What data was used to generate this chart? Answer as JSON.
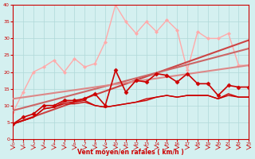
{
  "xlabel": "Vent moyen/en rafales ( km/h )",
  "xlim": [
    0,
    23
  ],
  "ylim": [
    0,
    40
  ],
  "xticks": [
    0,
    1,
    2,
    3,
    4,
    5,
    6,
    7,
    8,
    9,
    10,
    11,
    12,
    13,
    14,
    15,
    16,
    17,
    18,
    19,
    20,
    21,
    22,
    23
  ],
  "yticks": [
    0,
    5,
    10,
    15,
    20,
    25,
    30,
    35,
    40
  ],
  "bg_color": "#d4f0f0",
  "grid_color": "#b0d8d8",
  "series": [
    {
      "x": [
        0,
        1,
        2,
        3,
        4,
        5,
        6,
        7,
        8,
        9,
        10,
        11,
        12,
        13,
        14,
        15,
        16,
        17,
        18,
        19,
        20,
        21,
        22,
        23
      ],
      "y": [
        4.5,
        6.5,
        7.5,
        10,
        10,
        11.5,
        11.5,
        12,
        13.5,
        10,
        20.5,
        14,
        17.5,
        17,
        19.5,
        19,
        17,
        19.5,
        16.5,
        16.5,
        13,
        16,
        15.5,
        15.5
      ],
      "color": "#cc0000",
      "lw": 1.2,
      "marker": "D",
      "ms": 2.5,
      "zorder": 5
    },
    {
      "x": [
        0,
        1,
        2,
        3,
        4,
        5,
        6,
        7,
        8,
        9,
        10,
        11,
        12,
        13,
        14,
        15,
        16,
        17,
        18,
        19,
        20,
        21,
        22,
        23
      ],
      "y": [
        4.5,
        5.5,
        6.5,
        9,
        9.5,
        11,
        11,
        11.5,
        10,
        9.5,
        10,
        10.5,
        11,
        12,
        12.5,
        13,
        12.5,
        13,
        13,
        13,
        12,
        13.5,
        12.5,
        12.5
      ],
      "color": "#cc0000",
      "lw": 1.0,
      "marker": null,
      "ms": 0,
      "zorder": 4
    },
    {
      "x": [
        0,
        1,
        2,
        3,
        4,
        5,
        6,
        7,
        8,
        9,
        10,
        11,
        12,
        13,
        14,
        15,
        16,
        17,
        18,
        19,
        20,
        21,
        22,
        23
      ],
      "y": [
        4.5,
        5.5,
        6.5,
        9,
        9.5,
        10.5,
        10.5,
        11,
        10,
        9.5,
        10,
        10.5,
        11,
        11.5,
        12.5,
        13,
        12.5,
        13,
        13,
        13,
        12,
        13,
        12.5,
        12.5
      ],
      "color": "#cc0000",
      "lw": 1.0,
      "marker": null,
      "ms": 0,
      "zorder": 4
    },
    {
      "x": [
        0,
        23
      ],
      "y": [
        4.5,
        29.5
      ],
      "color": "#cc4444",
      "lw": 1.5,
      "marker": null,
      "ms": 0,
      "zorder": 3
    },
    {
      "x": [
        0,
        23
      ],
      "y": [
        8.5,
        27.0
      ],
      "color": "#cc6666",
      "lw": 1.5,
      "marker": null,
      "ms": 0,
      "zorder": 3
    },
    {
      "x": [
        0,
        23
      ],
      "y": [
        12.0,
        22.0
      ],
      "color": "#dd8888",
      "lw": 1.5,
      "marker": null,
      "ms": 0,
      "zorder": 3
    },
    {
      "x": [
        0,
        1,
        2,
        3,
        4,
        5,
        6,
        7,
        8,
        9,
        10,
        11,
        12,
        13,
        14,
        15,
        16,
        17,
        18,
        19,
        20,
        21,
        22,
        23
      ],
      "y": [
        8.0,
        14.0,
        20.0,
        21.5,
        23.5,
        20.0,
        24.0,
        21.5,
        22.5,
        29.0,
        40.0,
        35.0,
        31.5,
        35.0,
        32.0,
        35.5,
        32.5,
        20.5,
        32.0,
        30.0,
        30.0,
        31.5,
        22.0,
        22.0
      ],
      "color": "#ffaaaa",
      "lw": 1.0,
      "marker": "D",
      "ms": 2.0,
      "zorder": 2
    }
  ]
}
